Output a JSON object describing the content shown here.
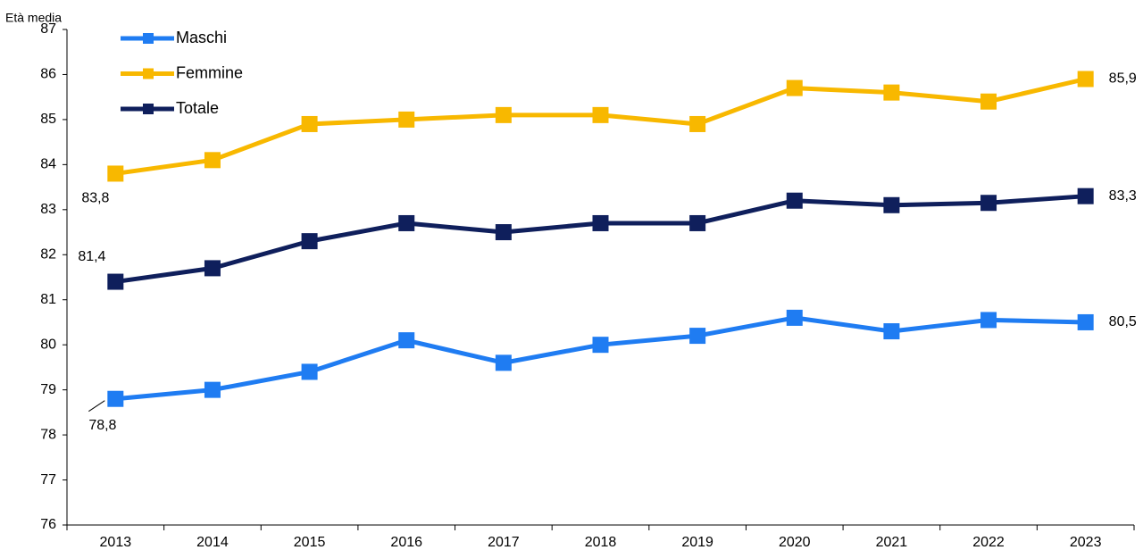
{
  "chart_data": {
    "type": "line",
    "y_label": "Età media",
    "categories": [
      "2013",
      "2014",
      "2015",
      "2016",
      "2017",
      "2018",
      "2019",
      "2020",
      "2021",
      "2022",
      "2023"
    ],
    "series": [
      {
        "name": "Maschi",
        "color": "#1f7cf2",
        "values": [
          78.8,
          79.0,
          79.4,
          80.1,
          79.6,
          80.0,
          80.2,
          80.6,
          80.3,
          80.55,
          80.5
        ],
        "value_labels": [
          "78,8",
          null,
          null,
          null,
          null,
          null,
          null,
          null,
          null,
          null,
          "80,5"
        ]
      },
      {
        "name": "Femmine",
        "color": "#f8b800",
        "values": [
          83.8,
          84.1,
          84.9,
          85.0,
          85.1,
          85.1,
          84.9,
          85.7,
          85.6,
          85.4,
          85.9
        ],
        "value_labels": [
          "83,8",
          null,
          null,
          null,
          null,
          null,
          null,
          null,
          null,
          null,
          "85,9"
        ]
      },
      {
        "name": "Totale",
        "color": "#0f1f5c",
        "values": [
          81.4,
          81.7,
          82.3,
          82.7,
          82.5,
          82.7,
          82.7,
          83.2,
          83.1,
          83.15,
          83.3
        ],
        "value_labels": [
          "81,4",
          null,
          null,
          null,
          null,
          null,
          null,
          null,
          null,
          null,
          "83,3"
        ]
      }
    ],
    "ylim": [
      76,
      87
    ],
    "yticks": [
      76,
      77,
      78,
      79,
      80,
      81,
      82,
      83,
      84,
      85,
      86,
      87
    ],
    "grid": false,
    "legend": "top-left"
  }
}
